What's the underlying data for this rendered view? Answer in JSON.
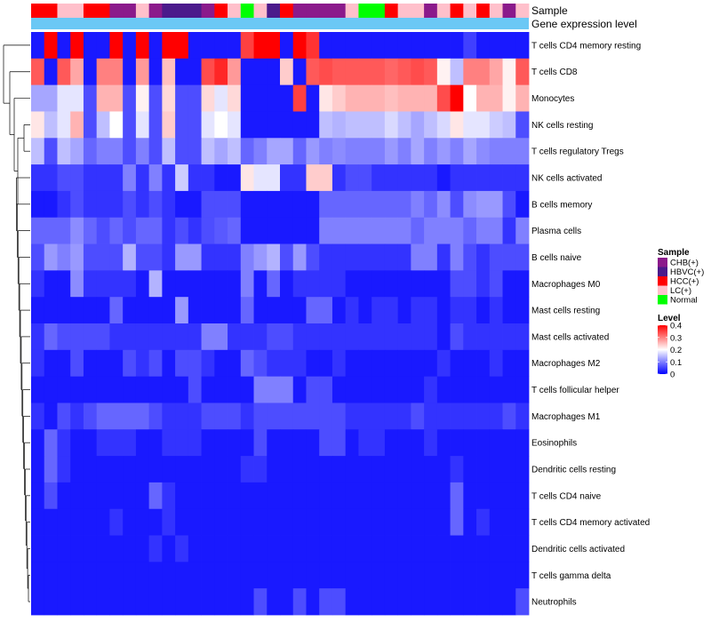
{
  "chart_data": {
    "type": "heatmap",
    "annotation_labels": {
      "sample": "Sample",
      "gene_expression": "Gene expression level"
    },
    "sample_legend": {
      "title": "Sample",
      "entries": [
        {
          "label": "CHB(+)",
          "color": "#8B1A8B"
        },
        {
          "label": "HBVC(+)",
          "color": "#4B1A8B"
        },
        {
          "label": "HCC(+)",
          "color": "#FF0000"
        },
        {
          "label": "LC(+)",
          "color": "#FFC0CB"
        },
        {
          "label": "Normal",
          "color": "#00FF00"
        }
      ]
    },
    "level_legend": {
      "title": "Level",
      "ticks": [
        "0.4",
        "0.3",
        "0.2",
        "0.1",
        "0"
      ],
      "tick_values": [
        0.4,
        0.3,
        0.2,
        0.1,
        0
      ]
    },
    "gene_expression_color": "#6BC8F5",
    "color_scale": {
      "min": 0,
      "mid": 0.2,
      "max": 0.4,
      "low": "#0000FF",
      "midcolor": "#FFFFFF",
      "high": "#FF0000"
    },
    "sample_groups": [
      2,
      2,
      3,
      3,
      2,
      2,
      0,
      0,
      3,
      0,
      1,
      1,
      1,
      0,
      2,
      3,
      4,
      3,
      1,
      2,
      0,
      0,
      0,
      0,
      3,
      4,
      4,
      2,
      3,
      3,
      0,
      3,
      2,
      3,
      2,
      3,
      0,
      3
    ],
    "rows": [
      "T cells CD4 memory resting",
      "T cells CD8",
      "Monocytes",
      "NK cells resting",
      "T cells regulatory  Tregs",
      "NK cells activated",
      "B cells memory",
      "Plasma cells",
      "B cells naive",
      "Macrophages M0",
      "Mast cells resting",
      "Mast cells activated",
      "Macrophages M2",
      "T cells follicular helper",
      "Macrophages M1",
      "Eosinophils",
      "Dendritic cells resting",
      "T cells CD4 naive",
      "T cells CD4 memory activated",
      "Dendritic cells activated",
      "T cells gamma delta",
      "Neutrophils"
    ],
    "values": [
      [
        0.02,
        0.4,
        0.02,
        0.4,
        0.02,
        0.02,
        0.4,
        0.02,
        0.4,
        0.02,
        0.4,
        0.4,
        0.02,
        0.02,
        0.02,
        0.02,
        0.35,
        0.4,
        0.4,
        0.02,
        0.4,
        0.36,
        0.02,
        0.02,
        0.02,
        0.02,
        0.02,
        0.02,
        0.02,
        0.02,
        0.02,
        0.02,
        0.02,
        0.05,
        0.02,
        0.02,
        0.02,
        0.02
      ],
      [
        0.33,
        0.02,
        0.33,
        0.27,
        0.02,
        0.3,
        0.3,
        0.02,
        0.28,
        0.02,
        0.25,
        0.02,
        0.02,
        0.34,
        0.37,
        0.28,
        0.02,
        0.02,
        0.02,
        0.24,
        0.02,
        0.33,
        0.34,
        0.33,
        0.33,
        0.33,
        0.33,
        0.32,
        0.33,
        0.34,
        0.33,
        0.21,
        0.15,
        0.3,
        0.3,
        0.27,
        0.21,
        0.33
      ],
      [
        0.13,
        0.13,
        0.18,
        0.18,
        0.06,
        0.26,
        0.26,
        0.06,
        0.21,
        0.06,
        0.23,
        0.06,
        0.06,
        0.23,
        0.18,
        0.23,
        0.02,
        0.02,
        0.02,
        0.02,
        0.35,
        0.02,
        0.22,
        0.24,
        0.26,
        0.26,
        0.26,
        0.25,
        0.26,
        0.26,
        0.26,
        0.34,
        0.4,
        0.2,
        0.26,
        0.26,
        0.21,
        0.26
      ],
      [
        0.22,
        0.15,
        0.18,
        0.26,
        0.06,
        0.15,
        0.2,
        0.06,
        0.18,
        0.06,
        0.24,
        0.06,
        0.06,
        0.18,
        0.2,
        0.18,
        0.02,
        0.02,
        0.02,
        0.02,
        0.02,
        0.02,
        0.15,
        0.14,
        0.15,
        0.15,
        0.15,
        0.17,
        0.15,
        0.13,
        0.15,
        0.17,
        0.22,
        0.18,
        0.18,
        0.16,
        0.15,
        0.06
      ],
      [
        0.15,
        0.06,
        0.15,
        0.13,
        0.08,
        0.1,
        0.1,
        0.06,
        0.1,
        0.06,
        0.15,
        0.06,
        0.06,
        0.15,
        0.13,
        0.15,
        0.08,
        0.1,
        0.13,
        0.13,
        0.08,
        0.12,
        0.1,
        0.11,
        0.1,
        0.1,
        0.1,
        0.12,
        0.1,
        0.13,
        0.1,
        0.12,
        0.1,
        0.13,
        0.11,
        0.1,
        0.1,
        0.1
      ],
      [
        0.04,
        0.04,
        0.06,
        0.06,
        0.04,
        0.04,
        0.04,
        0.1,
        0.04,
        0.1,
        0.04,
        0.16,
        0.04,
        0.04,
        0.02,
        0.02,
        0.22,
        0.18,
        0.18,
        0.04,
        0.04,
        0.24,
        0.24,
        0.04,
        0.06,
        0.06,
        0.04,
        0.04,
        0.04,
        0.04,
        0.04,
        0.02,
        0.04,
        0.04,
        0.04,
        0.04,
        0.04,
        0.04
      ],
      [
        0.02,
        0.02,
        0.04,
        0.06,
        0.04,
        0.04,
        0.04,
        0.06,
        0.04,
        0.06,
        0.04,
        0.02,
        0.02,
        0.06,
        0.06,
        0.06,
        0.02,
        0.02,
        0.02,
        0.02,
        0.02,
        0.02,
        0.08,
        0.08,
        0.08,
        0.08,
        0.08,
        0.08,
        0.08,
        0.1,
        0.08,
        0.11,
        0.06,
        0.11,
        0.12,
        0.12,
        0.06,
        0.02
      ],
      [
        0.08,
        0.08,
        0.08,
        0.11,
        0.08,
        0.06,
        0.08,
        0.06,
        0.08,
        0.08,
        0.04,
        0.06,
        0.04,
        0.06,
        0.07,
        0.08,
        0.02,
        0.02,
        0.02,
        0.02,
        0.02,
        0.02,
        0.1,
        0.1,
        0.1,
        0.1,
        0.1,
        0.1,
        0.1,
        0.08,
        0.1,
        0.1,
        0.1,
        0.08,
        0.1,
        0.1,
        0.04,
        0.1
      ],
      [
        0.06,
        0.12,
        0.1,
        0.12,
        0.06,
        0.06,
        0.06,
        0.14,
        0.06,
        0.06,
        0.04,
        0.12,
        0.12,
        0.04,
        0.04,
        0.04,
        0.1,
        0.12,
        0.14,
        0.06,
        0.12,
        0.06,
        0.04,
        0.04,
        0.04,
        0.04,
        0.04,
        0.04,
        0.04,
        0.1,
        0.1,
        0.04,
        0.1,
        0.06,
        0.04,
        0.06,
        0.06,
        0.06
      ],
      [
        0.04,
        0.02,
        0.02,
        0.11,
        0.04,
        0.04,
        0.04,
        0.04,
        0.02,
        0.14,
        0.02,
        0.02,
        0.02,
        0.02,
        0.02,
        0.02,
        0.1,
        0.02,
        0.08,
        0.02,
        0.04,
        0.04,
        0.04,
        0.04,
        0.02,
        0.02,
        0.02,
        0.02,
        0.02,
        0.02,
        0.02,
        0.02,
        0.06,
        0.06,
        0.04,
        0.06,
        0.02,
        0.02
      ],
      [
        0.02,
        0.02,
        0.02,
        0.02,
        0.02,
        0.02,
        0.08,
        0.02,
        0.02,
        0.02,
        0.02,
        0.12,
        0.02,
        0.02,
        0.02,
        0.02,
        0.08,
        0.02,
        0.02,
        0.02,
        0.02,
        0.08,
        0.08,
        0.02,
        0.04,
        0.02,
        0.04,
        0.04,
        0.02,
        0.04,
        0.04,
        0.02,
        0.04,
        0.04,
        0.02,
        0.04,
        0.02,
        0.02
      ],
      [
        0.04,
        0.08,
        0.06,
        0.06,
        0.06,
        0.06,
        0.04,
        0.04,
        0.04,
        0.04,
        0.04,
        0.04,
        0.04,
        0.1,
        0.1,
        0.04,
        0.04,
        0.04,
        0.06,
        0.06,
        0.04,
        0.04,
        0.04,
        0.04,
        0.04,
        0.04,
        0.04,
        0.04,
        0.04,
        0.04,
        0.04,
        0.02,
        0.06,
        0.04,
        0.04,
        0.04,
        0.04,
        0.04
      ],
      [
        0.04,
        0.02,
        0.02,
        0.06,
        0.02,
        0.02,
        0.02,
        0.06,
        0.04,
        0.06,
        0.02,
        0.06,
        0.06,
        0.04,
        0.02,
        0.02,
        0.08,
        0.06,
        0.04,
        0.04,
        0.04,
        0.02,
        0.02,
        0.04,
        0.02,
        0.02,
        0.02,
        0.02,
        0.02,
        0.02,
        0.02,
        0.04,
        0.02,
        0.02,
        0.02,
        0.04,
        0.02,
        0.02
      ],
      [
        0.02,
        0.02,
        0.02,
        0.02,
        0.02,
        0.02,
        0.02,
        0.02,
        0.02,
        0.02,
        0.02,
        0.02,
        0.06,
        0.02,
        0.02,
        0.02,
        0.02,
        0.1,
        0.1,
        0.1,
        0.02,
        0.06,
        0.06,
        0.02,
        0.02,
        0.02,
        0.02,
        0.02,
        0.02,
        0.02,
        0.04,
        0.02,
        0.02,
        0.02,
        0.02,
        0.02,
        0.02,
        0.02
      ],
      [
        0.04,
        0.02,
        0.06,
        0.04,
        0.06,
        0.08,
        0.08,
        0.08,
        0.08,
        0.06,
        0.04,
        0.04,
        0.04,
        0.06,
        0.06,
        0.06,
        0.04,
        0.06,
        0.06,
        0.06,
        0.06,
        0.06,
        0.06,
        0.06,
        0.04,
        0.04,
        0.04,
        0.04,
        0.04,
        0.06,
        0.04,
        0.04,
        0.04,
        0.04,
        0.04,
        0.04,
        0.06,
        0.04
      ],
      [
        0.02,
        0.08,
        0.04,
        0.02,
        0.02,
        0.04,
        0.04,
        0.04,
        0.02,
        0.02,
        0.04,
        0.04,
        0.04,
        0.02,
        0.02,
        0.02,
        0.02,
        0.06,
        0.02,
        0.02,
        0.02,
        0.02,
        0.06,
        0.06,
        0.02,
        0.04,
        0.04,
        0.02,
        0.02,
        0.02,
        0.04,
        0.02,
        0.02,
        0.02,
        0.02,
        0.02,
        0.02,
        0.02
      ],
      [
        0.02,
        0.08,
        0.04,
        0.02,
        0.02,
        0.02,
        0.02,
        0.02,
        0.02,
        0.02,
        0.02,
        0.02,
        0.02,
        0.02,
        0.02,
        0.02,
        0.04,
        0.04,
        0.02,
        0.02,
        0.02,
        0.02,
        0.02,
        0.02,
        0.02,
        0.02,
        0.02,
        0.02,
        0.02,
        0.02,
        0.02,
        0.02,
        0.04,
        0.02,
        0.02,
        0.02,
        0.02,
        0.02
      ],
      [
        0.02,
        0.06,
        0.02,
        0.02,
        0.02,
        0.02,
        0.02,
        0.02,
        0.02,
        0.08,
        0.04,
        0.02,
        0.02,
        0.02,
        0.02,
        0.02,
        0.02,
        0.02,
        0.02,
        0.02,
        0.02,
        0.02,
        0.02,
        0.02,
        0.02,
        0.02,
        0.02,
        0.02,
        0.02,
        0.02,
        0.02,
        0.02,
        0.08,
        0.02,
        0.02,
        0.02,
        0.02,
        0.02
      ],
      [
        0.02,
        0.02,
        0.02,
        0.02,
        0.02,
        0.02,
        0.04,
        0.02,
        0.02,
        0.02,
        0.04,
        0.02,
        0.02,
        0.02,
        0.02,
        0.02,
        0.02,
        0.02,
        0.02,
        0.02,
        0.02,
        0.02,
        0.02,
        0.02,
        0.02,
        0.02,
        0.02,
        0.02,
        0.02,
        0.02,
        0.02,
        0.02,
        0.08,
        0.02,
        0.04,
        0.02,
        0.02,
        0.02
      ],
      [
        0.02,
        0.02,
        0.02,
        0.02,
        0.02,
        0.02,
        0.02,
        0.02,
        0.02,
        0.04,
        0.02,
        0.04,
        0.02,
        0.02,
        0.02,
        0.02,
        0.02,
        0.02,
        0.02,
        0.02,
        0.02,
        0.02,
        0.02,
        0.02,
        0.02,
        0.02,
        0.02,
        0.02,
        0.02,
        0.02,
        0.02,
        0.02,
        0.02,
        0.02,
        0.02,
        0.02,
        0.02,
        0.02
      ],
      [
        0.02,
        0.02,
        0.02,
        0.02,
        0.02,
        0.02,
        0.02,
        0.02,
        0.02,
        0.02,
        0.02,
        0.02,
        0.02,
        0.02,
        0.02,
        0.02,
        0.02,
        0.02,
        0.02,
        0.02,
        0.02,
        0.02,
        0.02,
        0.02,
        0.02,
        0.02,
        0.02,
        0.02,
        0.02,
        0.02,
        0.02,
        0.02,
        0.02,
        0.02,
        0.02,
        0.02,
        0.02,
        0.02
      ],
      [
        0.02,
        0.02,
        0.02,
        0.02,
        0.02,
        0.02,
        0.02,
        0.02,
        0.02,
        0.02,
        0.02,
        0.02,
        0.02,
        0.02,
        0.02,
        0.02,
        0.02,
        0.06,
        0.02,
        0.02,
        0.06,
        0.02,
        0.06,
        0.06,
        0.02,
        0.02,
        0.02,
        0.02,
        0.02,
        0.02,
        0.02,
        0.02,
        0.02,
        0.02,
        0.02,
        0.02,
        0.02,
        0.06
      ]
    ]
  }
}
